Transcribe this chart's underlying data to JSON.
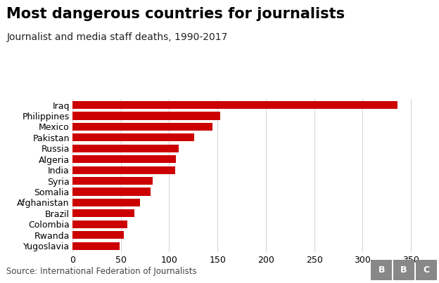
{
  "title": "Most dangerous countries for journalists",
  "subtitle": "Journalist and media staff deaths, 1990-2017",
  "source": "Source: International Federation of Journalists",
  "countries": [
    "Iraq",
    "Philippines",
    "Mexico",
    "Pakistan",
    "Russia",
    "Algeria",
    "India",
    "Syria",
    "Somalia",
    "Afghanistan",
    "Brazil",
    "Colombia",
    "Rwanda",
    "Yugoslavia"
  ],
  "values": [
    336,
    153,
    145,
    126,
    110,
    107,
    106,
    83,
    81,
    70,
    64,
    57,
    53,
    49
  ],
  "bar_color": "#cc0000",
  "background_color": "#ffffff",
  "xlim": [
    0,
    370
  ],
  "xticks": [
    0,
    50,
    100,
    150,
    200,
    250,
    300,
    350
  ],
  "title_fontsize": 15,
  "subtitle_fontsize": 10,
  "tick_fontsize": 9,
  "source_fontsize": 8.5,
  "bbc_fontsize": 9
}
